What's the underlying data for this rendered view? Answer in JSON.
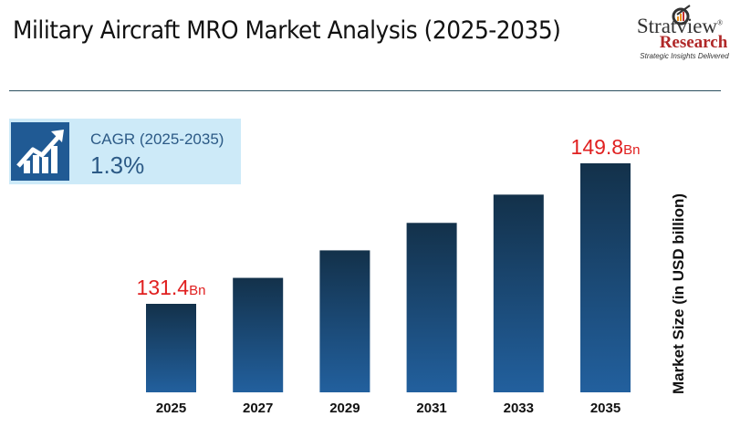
{
  "header": {
    "title": "Military Aircraft MRO Market Analysis (2025-2035)"
  },
  "logo": {
    "name": "Stratview",
    "sub": "Research",
    "tagline": "Strategic Insights Delivered",
    "reg": "®"
  },
  "cagr": {
    "label": "CAGR (2025-2035)",
    "value": "1.3%",
    "icon": "growth-chart-icon"
  },
  "colors": {
    "bar_top": "#13314a",
    "bar_bottom": "#22609e",
    "label_red": "#e02020"
  },
  "chart_data": {
    "type": "bar",
    "title": "Military Aircraft MRO Market Analysis (2025-2035)",
    "categories": [
      "2025",
      "2027",
      "2029",
      "2031",
      "2033",
      "2035"
    ],
    "values": [
      131.4,
      134.8,
      138.4,
      142.0,
      145.7,
      149.8
    ],
    "data_labels": [
      {
        "index": 0,
        "value": "131.4",
        "unit": "Bn"
      },
      {
        "index": 5,
        "value": "149.8",
        "unit": "Bn"
      }
    ],
    "xlabel": "",
    "ylabel": "Market Size (in USD billion)",
    "grid": false
  }
}
